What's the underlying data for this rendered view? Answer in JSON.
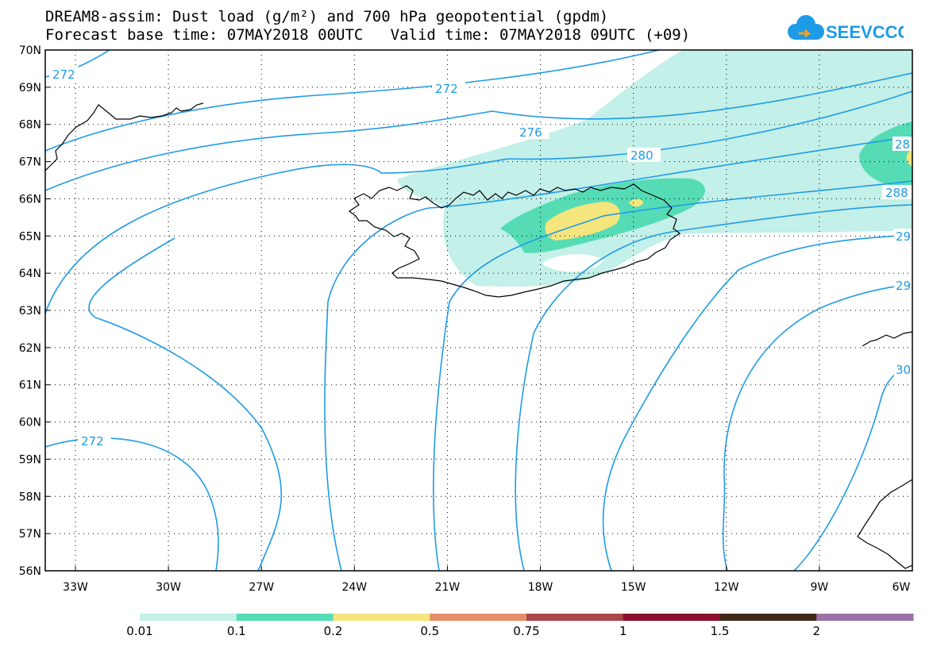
{
  "header": {
    "title_line1": "DREAM8-assim: Dust load (g/m²) and 700 hPa geopotential (gpdm)",
    "title_line2": "Forecast base time: 07MAY2018 00UTC   Valid time: 07MAY2018 09UTC (+09)"
  },
  "logo": {
    "text": "SEEVCCC",
    "icon": "cloud-arrow-icon",
    "color": "#1e9be6"
  },
  "map": {
    "region": "North Atlantic / Iceland",
    "lat_labels": [
      "70N",
      "69N",
      "68N",
      "67N",
      "66N",
      "65N",
      "64N",
      "63N",
      "62N",
      "61N",
      "60N",
      "59N",
      "58N",
      "57N",
      "56N"
    ],
    "lon_labels": [
      "33W",
      "30W",
      "27W",
      "24W",
      "21W",
      "18W",
      "15W",
      "12W",
      "9W",
      "6W"
    ],
    "contour_labels": [
      "272",
      "272",
      "276",
      "280",
      "28",
      "288",
      "29",
      "29",
      "30",
      "272"
    ],
    "contour_color": "#1e9be6",
    "coast_color": "#000000"
  },
  "colorbar": {
    "labels": [
      "0.01",
      "0.1",
      "0.2",
      "0.5",
      "0.75",
      "1",
      "1.5",
      "2"
    ],
    "colors": [
      "#c3f0e8",
      "#55dcb5",
      "#f4e57c",
      "#e48f6a",
      "#a84848",
      "#8a0f2f",
      "#3f2914",
      "#9a73a7"
    ]
  }
}
